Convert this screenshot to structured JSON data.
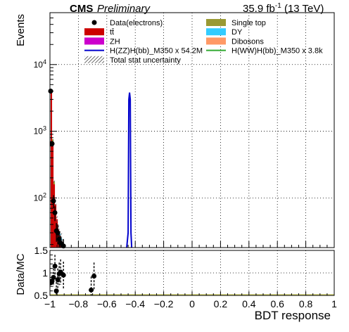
{
  "header": {
    "experiment": "CMS",
    "status": "Preliminary",
    "lumi_value": "35.9 fb",
    "lumi_exponent": "-1",
    "energy": " (13 TeV)"
  },
  "legend": [
    {
      "label": "Data(electrons)",
      "kind": "marker",
      "color": "#000000"
    },
    {
      "label": "Single top",
      "kind": "box",
      "color": "#999933"
    },
    {
      "label": "tt̄",
      "kind": "box",
      "color": "#cc0000"
    },
    {
      "label": "DY",
      "kind": "box",
      "color": "#33ccff"
    },
    {
      "label": "ZH",
      "kind": "box",
      "color": "#cc00cc"
    },
    {
      "label": "Dibosons",
      "kind": "box",
      "color": "#ff9966"
    },
    {
      "label": "H(ZZ)H(bb)_M350 x 54.2M",
      "kind": "line",
      "color": "#0000cc"
    },
    {
      "label": "H(WW)H(bb)_M350 x 3.8k",
      "kind": "line",
      "color": "#33aa33"
    },
    {
      "label": "Total stat uncertainty",
      "kind": "hatch",
      "color": "#555555"
    }
  ],
  "top_axis": {
    "ylabel": "Events",
    "yticks": [
      {
        "base": "10",
        "exp": "2",
        "value": 100
      },
      {
        "base": "10",
        "exp": "3",
        "value": 1000
      },
      {
        "base": "10",
        "exp": "4",
        "value": 10000
      }
    ]
  },
  "ratio_axis": {
    "ylabel": "Data/MC",
    "yticks": [
      "0.5",
      "1",
      "1.5"
    ],
    "xlabel": "BDT response",
    "xticks": [
      "−1",
      "−0.8",
      "−0.6",
      "−0.4",
      "−0.2",
      "0",
      "0.2",
      "0.4",
      "0.6",
      "0.8",
      "1"
    ]
  },
  "chart_data": [
    {
      "type": "bar",
      "panel": "main",
      "xlabel": "BDT response",
      "ylabel": "Events",
      "xlim": [
        -1,
        1
      ],
      "ylim": [
        18,
        60000
      ],
      "log_y": true,
      "grid": true,
      "bin_width": 0.01,
      "stacked_series": [
        {
          "name": "tt̄",
          "color": "#cc0000",
          "bins": [
            {
              "x": -0.99,
              "y": 3900
            },
            {
              "x": -0.98,
              "y": 700
            },
            {
              "x": -0.97,
              "y": 160
            },
            {
              "x": -0.96,
              "y": 80
            },
            {
              "x": -0.95,
              "y": 48
            },
            {
              "x": -0.94,
              "y": 34
            },
            {
              "x": -0.93,
              "y": 27
            },
            {
              "x": -0.92,
              "y": 23
            },
            {
              "x": -0.91,
              "y": 21
            }
          ]
        },
        {
          "name": "Single top",
          "color": "#999933",
          "bins": [
            {
              "x": -0.99,
              "y": 300
            },
            {
              "x": -0.98,
              "y": 60
            },
            {
              "x": -0.97,
              "y": 15
            }
          ]
        },
        {
          "name": "DY",
          "color": "#33ccff",
          "bins": [
            {
              "x": -0.93,
              "y": 2
            },
            {
              "x": -0.92,
              "y": 2
            }
          ]
        }
      ],
      "signal_series": [
        {
          "name": "H(ZZ)H(bb)_M350 x 54.2M",
          "color": "#0000cc",
          "points": [
            [
              -0.46,
              18
            ],
            [
              -0.45,
              30
            ],
            [
              -0.445,
              3000
            ],
            [
              -0.44,
              3800
            ],
            [
              -0.435,
              3000
            ],
            [
              -0.43,
              30
            ],
            [
              -0.425,
              18
            ]
          ]
        },
        {
          "name": "H(WW)H(bb)_M350 x 3.8k",
          "color": "#33aa33",
          "points": []
        }
      ],
      "data_points": [
        {
          "x": -0.995,
          "y": 4000,
          "err": 200
        },
        {
          "x": -0.985,
          "y": 650,
          "err": 60
        },
        {
          "x": -0.975,
          "y": 90,
          "err": 20
        },
        {
          "x": -0.965,
          "y": 60,
          "err": 15
        },
        {
          "x": -0.955,
          "y": 32,
          "err": 10
        },
        {
          "x": -0.945,
          "y": 30,
          "err": 10
        },
        {
          "x": -0.935,
          "y": 24,
          "err": 7
        },
        {
          "x": -0.925,
          "y": 21,
          "err": 6
        },
        {
          "x": -0.905,
          "y": 19,
          "err": 5
        }
      ]
    },
    {
      "type": "scatter",
      "panel": "ratio",
      "xlabel": "BDT response",
      "ylabel": "Data/MC",
      "xlim": [
        -1,
        1
      ],
      "ylim": [
        0.5,
        1.5
      ],
      "grid": true,
      "points": [
        {
          "x": -0.995,
          "y": 0.78,
          "err": 0.08
        },
        {
          "x": -0.985,
          "y": 0.82,
          "err": 0.12
        },
        {
          "x": -0.975,
          "y": 0.9,
          "err": 0.2
        },
        {
          "x": -0.965,
          "y": 1.15,
          "err": 0.25
        },
        {
          "x": -0.955,
          "y": 0.6,
          "err": 0.2
        },
        {
          "x": -0.945,
          "y": 0.85,
          "err": 0.25
        },
        {
          "x": -0.935,
          "y": 0.98,
          "err": 0.25
        },
        {
          "x": -0.925,
          "y": 1.02,
          "err": 0.28
        },
        {
          "x": -0.905,
          "y": 0.95,
          "err": 0.3
        },
        {
          "x": -0.71,
          "y": 0.62,
          "err": 0.3
        },
        {
          "x": -0.69,
          "y": 0.93,
          "err": 0.3
        }
      ]
    }
  ]
}
